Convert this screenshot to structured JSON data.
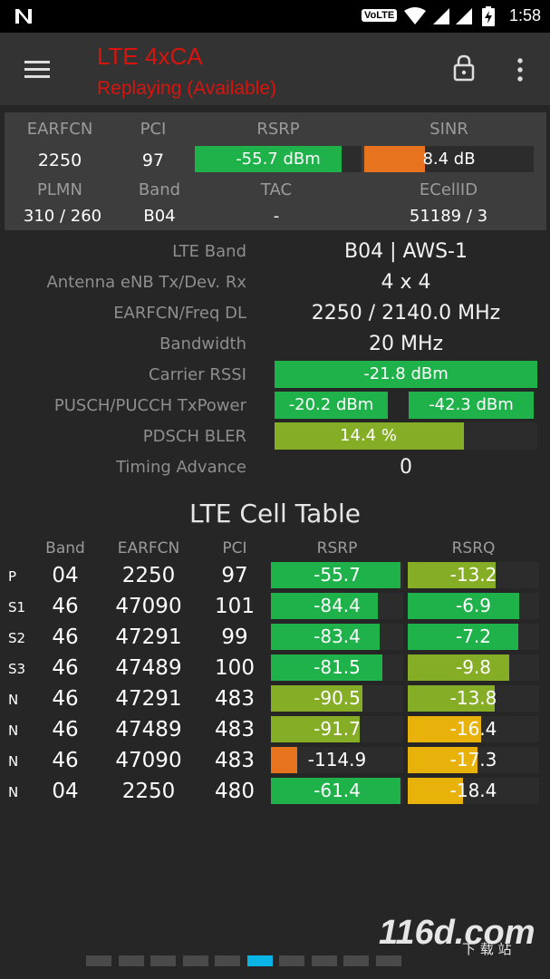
{
  "status_bar": {
    "time": "1:58",
    "volte": "VoLTE"
  },
  "app_bar": {
    "title": "LTE 4xCA",
    "subtitle": "Replaying (Available)"
  },
  "summary": {
    "headers": {
      "earfcn": "EARFCN",
      "pci": "PCI",
      "rsrp": "RSRP",
      "sinr": "SINR",
      "plmn": "PLMN",
      "band": "Band",
      "tac": "TAC",
      "ecellid": "ECellID"
    },
    "earfcn": "2250",
    "pci": "97",
    "rsrp": {
      "text": "-55.7 dBm",
      "fill": 0.88,
      "color": "#1fb24a"
    },
    "sinr": {
      "text": "8.4 dB",
      "fill": 0.36,
      "color": "#e8731e"
    },
    "plmn": "310 / 260",
    "band": "B04",
    "tac": "-",
    "ecellid": "51189 / 3"
  },
  "details": {
    "lte_band": {
      "label": "LTE Band",
      "value": "B04 | AWS-1"
    },
    "antenna": {
      "label": "Antenna eNB Tx/Dev. Rx",
      "value": "4 x 4"
    },
    "earfcn_freq": {
      "label": "EARFCN/Freq DL",
      "value": "2250 / 2140.0 MHz"
    },
    "bandwidth": {
      "label": "Bandwidth",
      "value": "20 MHz"
    },
    "carrier_rssi": {
      "label": "Carrier RSSI",
      "text": "-21.8 dBm",
      "fill": 1.0
    },
    "tx_power": {
      "label": "PUSCH/PUCCH TxPower",
      "pusch": "-20.2 dBm",
      "pucch": "-42.3 dBm"
    },
    "pdsch_bler": {
      "label": "PDSCH BLER",
      "text": "14.4 %",
      "fill": 0.72
    },
    "timing_advance": {
      "label": "Timing Advance",
      "value": "0"
    }
  },
  "cell_table": {
    "title": "LTE Cell Table",
    "columns": [
      "Band",
      "EARFCN",
      "PCI",
      "RSRP",
      "RSRQ"
    ],
    "rows": [
      {
        "type": "P",
        "band": "04",
        "earfcn": "2250",
        "pci": "97",
        "rsrp": "-55.7",
        "rsrp_fill": 0.98,
        "rsrp_color": "#1fb24a",
        "rsrq": "-13.2",
        "rsrq_fill": 0.67,
        "rsrq_color": "#86ad26"
      },
      {
        "type": "S1",
        "band": "46",
        "earfcn": "47090",
        "pci": "101",
        "rsrp": "-84.4",
        "rsrp_fill": 0.81,
        "rsrp_color": "#1fb24a",
        "rsrq": "-6.9",
        "rsrq_fill": 0.85,
        "rsrq_color": "#1fb24a"
      },
      {
        "type": "S2",
        "band": "46",
        "earfcn": "47291",
        "pci": "99",
        "rsrp": "-83.4",
        "rsrp_fill": 0.82,
        "rsrp_color": "#1fb24a",
        "rsrq": "-7.2",
        "rsrq_fill": 0.84,
        "rsrq_color": "#1fb24a"
      },
      {
        "type": "S3",
        "band": "46",
        "earfcn": "47489",
        "pci": "100",
        "rsrp": "-81.5",
        "rsrp_fill": 0.84,
        "rsrp_color": "#1fb24a",
        "rsrq": "-9.8",
        "rsrq_fill": 0.77,
        "rsrq_color": "#86ad26"
      },
      {
        "type": "N",
        "band": "46",
        "earfcn": "47291",
        "pci": "483",
        "rsrp": "-90.5",
        "rsrp_fill": 0.69,
        "rsrp_color": "#86ad26",
        "rsrq": "-13.8",
        "rsrq_fill": 0.66,
        "rsrq_color": "#86ad26"
      },
      {
        "type": "N",
        "band": "46",
        "earfcn": "47489",
        "pci": "483",
        "rsrp": "-91.7",
        "rsrp_fill": 0.67,
        "rsrp_color": "#86ad26",
        "rsrq": "-16.4",
        "rsrq_fill": 0.56,
        "rsrq_color": "#e8b20a"
      },
      {
        "type": "N",
        "band": "46",
        "earfcn": "47090",
        "pci": "483",
        "rsrp": "-114.9",
        "rsrp_fill": 0.2,
        "rsrp_color": "#e8731e",
        "rsrq": "-17.3",
        "rsrq_fill": 0.53,
        "rsrq_color": "#e8b20a"
      },
      {
        "type": "N",
        "band": "04",
        "earfcn": "2250",
        "pci": "480",
        "rsrp": "-61.4",
        "rsrp_fill": 0.98,
        "rsrp_color": "#1fb24a",
        "rsrq": "-18.4",
        "rsrq_fill": 0.42,
        "rsrq_color": "#e8b20a"
      }
    ]
  },
  "pager": {
    "count": 10,
    "active_index": 5
  },
  "watermark": {
    "text": "116d.com",
    "sub": "下 载 站"
  }
}
